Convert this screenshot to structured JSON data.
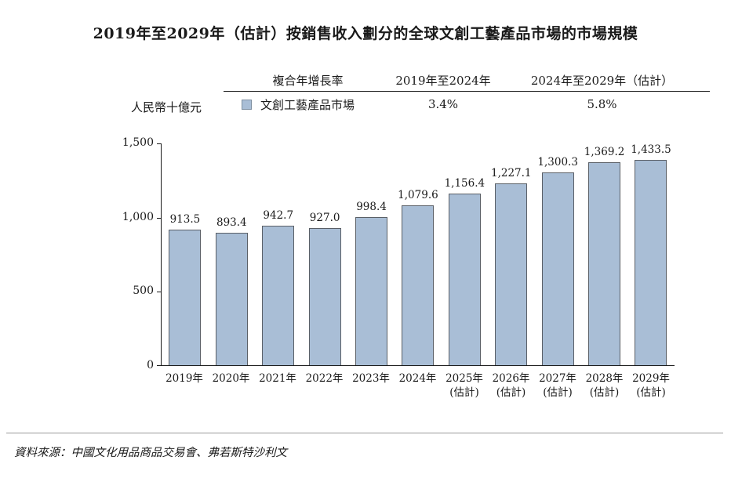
{
  "title": "2019年至2029年（估計）按銷售收入劃分的全球文創工藝產品市場的市場規模",
  "legend": {
    "unit_label": "人民幣十億元",
    "cagr_label": "複合年增長率",
    "period1": "2019年至2024年",
    "period2": "2024年至2029年（估計）",
    "series_label": "文創工藝產品市場",
    "cagr_2019_2024": "3.4%",
    "cagr_2024_2029": "5.8%"
  },
  "colors": {
    "bar_fill": "#a9bed6",
    "bar_border": "#5a5f66",
    "axis": "#1a1a1a"
  },
  "chart_data": {
    "type": "bar",
    "title": "2019年至2029年（估計）按銷售收入劃分的全球文創工藝產品市場的市場規模",
    "xlabel": "",
    "ylabel": "人民幣十億元",
    "ylim": [
      0,
      1500
    ],
    "grid": false,
    "legend_position": "top",
    "series_name": "文創工藝產品市場",
    "cagr": {
      "2019-2024": "3.4%",
      "2024-2029(估計)": "5.8%"
    },
    "categories": [
      "2019年",
      "2020年",
      "2021年",
      "2022年",
      "2023年",
      "2024年",
      "2025年",
      "2026年",
      "2027年",
      "2028年",
      "2029年"
    ],
    "sublabels": [
      "",
      "",
      "",
      "",
      "",
      "",
      "(估計)",
      "(估計)",
      "(估計)",
      "(估計)",
      "(估計)"
    ],
    "values": [
      913.5,
      893.4,
      942.7,
      927.0,
      998.4,
      1079.6,
      1156.4,
      1227.1,
      1300.3,
      1369.2,
      1433.5
    ],
    "labels": [
      "913.5",
      "893.4",
      "942.7",
      "927.0",
      "998.4",
      "1,079.6",
      "1,156.4",
      "1,227.1",
      "1,300.3",
      "1,369.2",
      "1,433.5"
    ],
    "y_ticks": [
      {
        "label": "0",
        "value": 0
      },
      {
        "label": "500",
        "value": 500
      },
      {
        "label": "1,000",
        "value": 1000
      },
      {
        "label": "1,500",
        "value": 1500
      }
    ]
  },
  "footer": {
    "source": "資料來源：中國文化用品商品交易會、弗若斯特沙利文"
  }
}
